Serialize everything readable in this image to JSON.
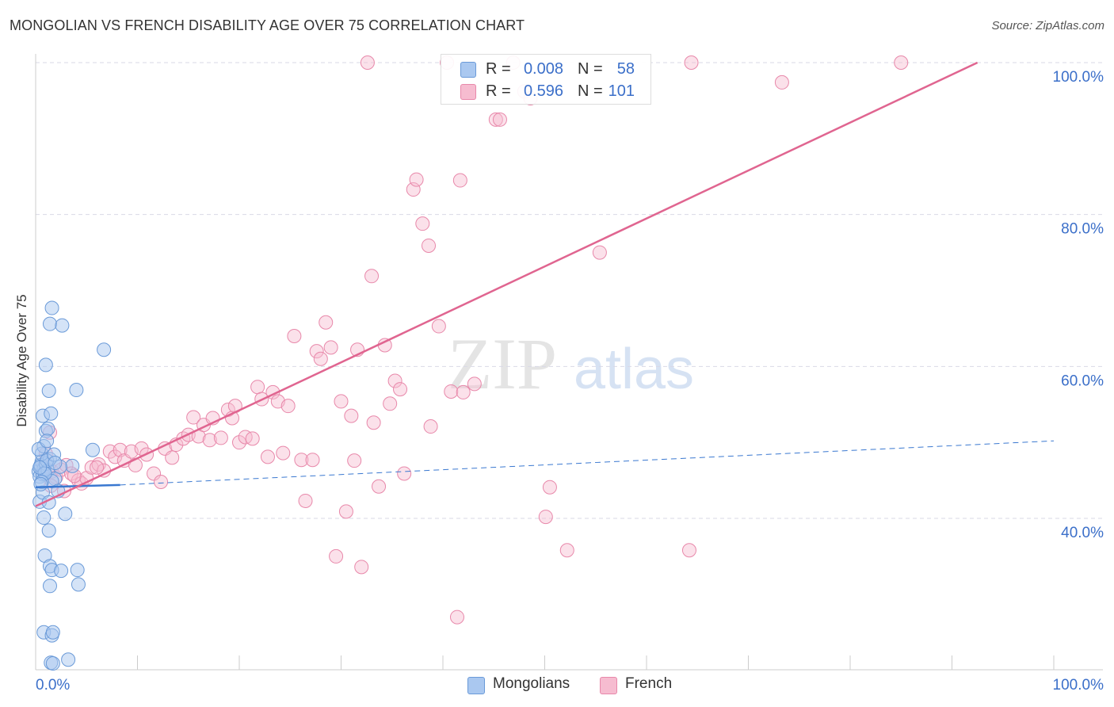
{
  "title": "MONGOLIAN VS FRENCH DISABILITY AGE OVER 75 CORRELATION CHART",
  "source": "Source: ZipAtlas.com",
  "watermark": {
    "zip": "ZIP",
    "atlas": "atlas"
  },
  "colors": {
    "mongolian_fill": "#aac8f0",
    "mongolian_stroke": "#6a9ad8",
    "mongolian_line": "#3a78d0",
    "french_fill": "#f6bcd0",
    "french_stroke": "#e888aa",
    "french_line": "#e06590",
    "grid": "#d9d9e6",
    "axis_text": "#3b6fc9"
  },
  "legend": {
    "rows": [
      {
        "r_label": "R =",
        "r_value": "0.008",
        "n_label": "N =",
        "n_value": "58",
        "series": "mongolians"
      },
      {
        "r_label": "R =",
        "r_value": "0.596",
        "n_label": "N =",
        "n_value": "101",
        "series": "french"
      }
    ]
  },
  "bottom_legend": {
    "mongolians": "Mongolians",
    "french": "French"
  },
  "chart_data": {
    "type": "scatter",
    "title": "MONGOLIAN VS FRENCH DISABILITY AGE OVER 75 CORRELATION CHART",
    "xlabel": "",
    "ylabel": "Disability Age Over 75",
    "xlim": [
      0,
      100
    ],
    "ylim": [
      20,
      102
    ],
    "x_tick_labels": [
      "0.0%",
      "100.0%"
    ],
    "y_ticks": [
      40,
      60,
      80,
      100
    ],
    "y_tick_labels": [
      "40.0%",
      "60.0%",
      "80.0%",
      "100.0%"
    ],
    "grid": true,
    "legend_position": "top-center",
    "series": [
      {
        "name": "Mongolians",
        "r": 0.008,
        "n": 58,
        "trend": {
          "x0": 0,
          "y0": 44.1,
          "x1": 8.3,
          "y1": 44.4,
          "dashed_x_end": 100,
          "dashed_y_end": 50.2
        },
        "points": [
          [
            0.3,
            46.2
          ],
          [
            0.4,
            45.5
          ],
          [
            0.5,
            46.8
          ],
          [
            0.6,
            47.5
          ],
          [
            0.7,
            45.8
          ],
          [
            0.8,
            46.5
          ],
          [
            0.5,
            47.0
          ],
          [
            0.9,
            46.0
          ],
          [
            1.0,
            47.2
          ],
          [
            1.2,
            46.3
          ],
          [
            1.4,
            47.8
          ],
          [
            0.6,
            48.5
          ],
          [
            0.8,
            49.5
          ],
          [
            1.0,
            51.5
          ],
          [
            0.7,
            53.5
          ],
          [
            1.5,
            53.8
          ],
          [
            1.2,
            51.8
          ],
          [
            1.3,
            56.8
          ],
          [
            1.0,
            60.2
          ],
          [
            1.4,
            65.6
          ],
          [
            1.6,
            67.7
          ],
          [
            2.6,
            65.4
          ],
          [
            6.7,
            62.2
          ],
          [
            4.0,
            56.9
          ],
          [
            3.6,
            46.9
          ],
          [
            5.6,
            49.0
          ],
          [
            1.9,
            45.2
          ],
          [
            0.4,
            42.2
          ],
          [
            0.7,
            43.4
          ],
          [
            1.3,
            42.1
          ],
          [
            1.6,
            44.9
          ],
          [
            2.2,
            43.6
          ],
          [
            2.9,
            40.6
          ],
          [
            0.8,
            40.1
          ],
          [
            1.3,
            38.4
          ],
          [
            0.9,
            35.1
          ],
          [
            1.4,
            33.7
          ],
          [
            1.6,
            33.2
          ],
          [
            2.5,
            33.1
          ],
          [
            4.1,
            33.2
          ],
          [
            4.2,
            31.3
          ],
          [
            1.4,
            31.1
          ],
          [
            0.8,
            25.0
          ],
          [
            1.6,
            24.6
          ],
          [
            1.7,
            25.0
          ],
          [
            3.2,
            21.4
          ],
          [
            1.5,
            21.0
          ],
          [
            1.7,
            20.9
          ],
          [
            0.9,
            45.9
          ],
          [
            0.6,
            44.8
          ],
          [
            1.1,
            47.6
          ],
          [
            0.4,
            46.7
          ],
          [
            1.8,
            48.4
          ],
          [
            2.4,
            46.8
          ],
          [
            0.3,
            49.1
          ],
          [
            1.1,
            50.2
          ],
          [
            0.5,
            44.5
          ],
          [
            1.9,
            47.3
          ]
        ]
      },
      {
        "name": "French",
        "r": 0.596,
        "n": 101,
        "trend": {
          "x0": 0,
          "y0": 41.6,
          "x1": 92.5,
          "y1": 100
        },
        "points": [
          [
            1.0,
            48.5
          ],
          [
            1.6,
            46.2
          ],
          [
            2.0,
            45.4
          ],
          [
            2.5,
            46.4
          ],
          [
            3.0,
            47.0
          ],
          [
            3.5,
            45.9
          ],
          [
            4.2,
            45.0
          ],
          [
            4.5,
            44.6
          ],
          [
            5.0,
            45.3
          ],
          [
            5.5,
            46.7
          ],
          [
            6.2,
            47.1
          ],
          [
            6.7,
            46.3
          ],
          [
            7.3,
            48.8
          ],
          [
            7.8,
            48.1
          ],
          [
            8.3,
            49.0
          ],
          [
            8.7,
            47.6
          ],
          [
            9.4,
            48.8
          ],
          [
            9.8,
            47.0
          ],
          [
            10.4,
            49.2
          ],
          [
            10.9,
            48.4
          ],
          [
            11.6,
            45.9
          ],
          [
            12.3,
            44.8
          ],
          [
            12.7,
            49.2
          ],
          [
            13.4,
            48.0
          ],
          [
            13.8,
            49.7
          ],
          [
            14.5,
            50.5
          ],
          [
            15.0,
            51.0
          ],
          [
            15.5,
            53.3
          ],
          [
            16.0,
            50.8
          ],
          [
            16.5,
            52.3
          ],
          [
            17.1,
            50.3
          ],
          [
            17.4,
            53.2
          ],
          [
            18.2,
            50.6
          ],
          [
            18.9,
            54.3
          ],
          [
            19.3,
            53.2
          ],
          [
            19.6,
            54.8
          ],
          [
            20.0,
            50.0
          ],
          [
            20.6,
            50.7
          ],
          [
            21.3,
            50.5
          ],
          [
            21.8,
            57.3
          ],
          [
            22.2,
            55.7
          ],
          [
            22.8,
            48.1
          ],
          [
            23.3,
            56.6
          ],
          [
            23.8,
            55.4
          ],
          [
            24.3,
            48.6
          ],
          [
            24.8,
            54.8
          ],
          [
            25.4,
            64.0
          ],
          [
            26.1,
            47.7
          ],
          [
            26.5,
            42.3
          ],
          [
            27.2,
            47.7
          ],
          [
            27.6,
            62.0
          ],
          [
            28.0,
            61.0
          ],
          [
            28.5,
            65.8
          ],
          [
            29.0,
            62.5
          ],
          [
            29.5,
            35.0
          ],
          [
            30.0,
            55.4
          ],
          [
            30.5,
            40.9
          ],
          [
            31.0,
            53.5
          ],
          [
            31.3,
            47.6
          ],
          [
            31.6,
            62.2
          ],
          [
            32.0,
            33.6
          ],
          [
            32.6,
            100.0
          ],
          [
            33.0,
            71.9
          ],
          [
            33.2,
            52.6
          ],
          [
            33.7,
            44.2
          ],
          [
            34.3,
            62.8
          ],
          [
            34.8,
            55.1
          ],
          [
            35.3,
            58.1
          ],
          [
            35.8,
            57.0
          ],
          [
            36.2,
            45.9
          ],
          [
            37.1,
            83.3
          ],
          [
            37.4,
            84.6
          ],
          [
            38.0,
            78.8
          ],
          [
            38.6,
            75.9
          ],
          [
            38.8,
            52.1
          ],
          [
            39.6,
            65.3
          ],
          [
            40.4,
            100.0
          ],
          [
            40.8,
            56.7
          ],
          [
            41.4,
            27.0
          ],
          [
            41.7,
            84.5
          ],
          [
            42.0,
            56.6
          ],
          [
            43.1,
            57.7
          ],
          [
            45.2,
            92.5
          ],
          [
            45.6,
            92.5
          ],
          [
            46.9,
            100.0
          ],
          [
            48.0,
            96.2
          ],
          [
            48.6,
            95.3
          ],
          [
            50.1,
            40.2
          ],
          [
            50.5,
            44.1
          ],
          [
            52.2,
            35.8
          ],
          [
            55.4,
            75.0
          ],
          [
            64.2,
            35.8
          ],
          [
            64.4,
            100.0
          ],
          [
            73.3,
            97.4
          ],
          [
            85.0,
            100.0
          ],
          [
            1.4,
            51.3
          ],
          [
            2.8,
            43.6
          ],
          [
            6.0,
            46.7
          ],
          [
            3.8,
            45.6
          ],
          [
            0.8,
            46.8
          ],
          [
            1.5,
            44.3
          ]
        ]
      }
    ]
  }
}
